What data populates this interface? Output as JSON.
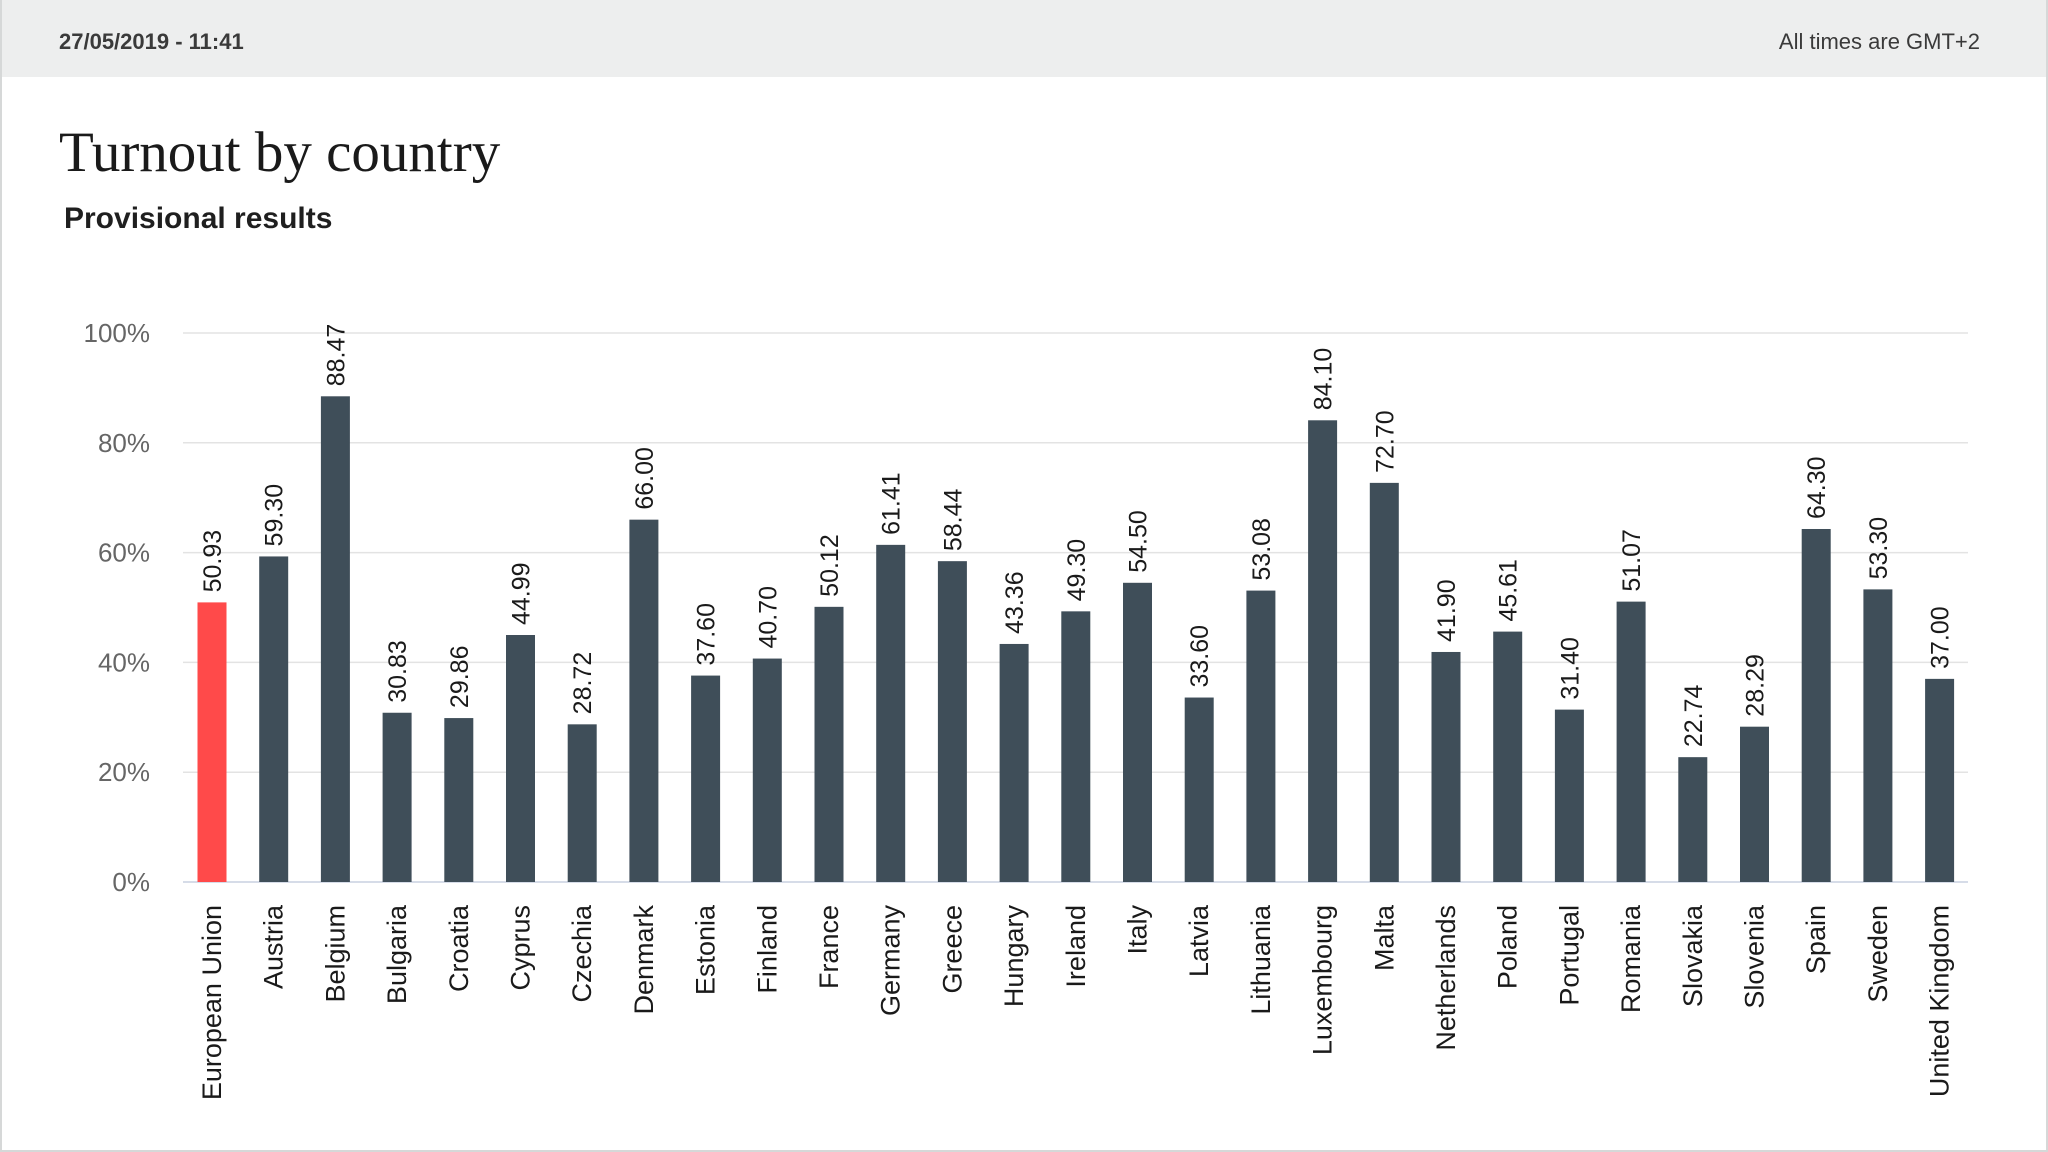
{
  "header": {
    "timestamp": "27/05/2019 - 11:41",
    "timezone": "All times are GMT+2"
  },
  "chart_data": {
    "type": "bar",
    "title": "Turnout by country",
    "subtitle": "Provisional results",
    "xlabel": "",
    "ylabel": "",
    "ylim": [
      0,
      100
    ],
    "yticks": [
      "0%",
      "20%",
      "40%",
      "60%",
      "80%",
      "100%"
    ],
    "grid": true,
    "legend": "none",
    "colors": {
      "highlight": "#ff4a4a",
      "default": "#3f4e59"
    },
    "highlight_category": "European Union",
    "categories": [
      "European Union",
      "Austria",
      "Belgium",
      "Bulgaria",
      "Croatia",
      "Cyprus",
      "Czechia",
      "Denmark",
      "Estonia",
      "Finland",
      "France",
      "Germany",
      "Greece",
      "Hungary",
      "Ireland",
      "Italy",
      "Latvia",
      "Lithuania",
      "Luxembourg",
      "Malta",
      "Netherlands",
      "Poland",
      "Portugal",
      "Romania",
      "Slovakia",
      "Slovenia",
      "Spain",
      "Sweden",
      "United Kingdom"
    ],
    "values": [
      50.93,
      59.3,
      88.47,
      30.83,
      29.86,
      44.99,
      28.72,
      66.0,
      37.6,
      40.7,
      50.12,
      61.41,
      58.44,
      43.36,
      49.3,
      54.5,
      33.6,
      53.08,
      84.1,
      72.7,
      41.9,
      45.61,
      31.4,
      51.07,
      22.74,
      28.29,
      64.3,
      53.3,
      37.0
    ],
    "data_labels": [
      "50.93",
      "59.30",
      "88.47",
      "30.83",
      "29.86",
      "44.99",
      "28.72",
      "66.00",
      "37.60",
      "40.70",
      "50.12",
      "61.41",
      "58.44",
      "43.36",
      "49.30",
      "54.50",
      "33.60",
      "53.08",
      "84.10",
      "72.70",
      "41.90",
      "45.61",
      "31.40",
      "51.07",
      "22.74",
      "28.29",
      "64.30",
      "53.30",
      "37.00"
    ]
  }
}
